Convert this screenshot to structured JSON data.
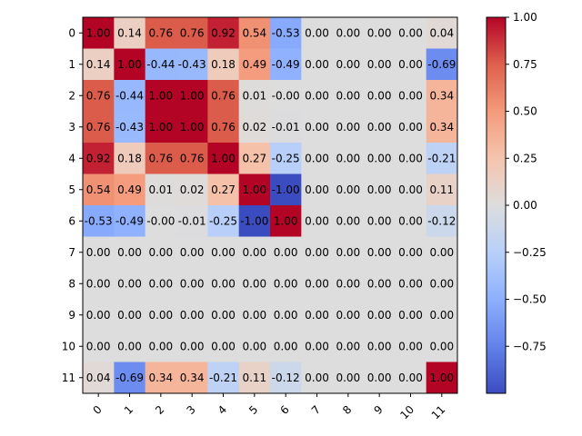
{
  "chart_data": {
    "type": "heatmap",
    "title": "",
    "xlabel": "",
    "ylabel": "",
    "x_categories": [
      "0",
      "1",
      "2",
      "3",
      "4",
      "5",
      "6",
      "7",
      "8",
      "9",
      "10",
      "11"
    ],
    "y_categories": [
      "0",
      "1",
      "2",
      "3",
      "4",
      "5",
      "6",
      "7",
      "8",
      "9",
      "10",
      "11"
    ],
    "values": [
      [
        1.0,
        0.14,
        0.76,
        0.76,
        0.92,
        0.54,
        -0.53,
        0.0,
        0.0,
        0.0,
        0.0,
        0.04
      ],
      [
        0.14,
        1.0,
        -0.44,
        -0.43,
        0.18,
        0.49,
        -0.49,
        0.0,
        0.0,
        0.0,
        0.0,
        -0.69
      ],
      [
        0.76,
        -0.44,
        1.0,
        1.0,
        0.76,
        0.01,
        -0.0,
        0.0,
        0.0,
        0.0,
        0.0,
        0.34
      ],
      [
        0.76,
        -0.43,
        1.0,
        1.0,
        0.76,
        0.02,
        -0.01,
        0.0,
        0.0,
        0.0,
        0.0,
        0.34
      ],
      [
        0.92,
        0.18,
        0.76,
        0.76,
        1.0,
        0.27,
        -0.25,
        0.0,
        0.0,
        0.0,
        0.0,
        -0.21
      ],
      [
        0.54,
        0.49,
        0.01,
        0.02,
        0.27,
        1.0,
        -1.0,
        0.0,
        0.0,
        0.0,
        0.0,
        0.11
      ],
      [
        -0.53,
        -0.49,
        -0.0,
        -0.01,
        -0.25,
        -1.0,
        1.0,
        0.0,
        0.0,
        0.0,
        0.0,
        -0.12
      ],
      [
        0.0,
        0.0,
        0.0,
        0.0,
        0.0,
        0.0,
        0.0,
        0.0,
        0.0,
        0.0,
        0.0,
        0.0
      ],
      [
        0.0,
        0.0,
        0.0,
        0.0,
        0.0,
        0.0,
        0.0,
        0.0,
        0.0,
        0.0,
        0.0,
        0.0
      ],
      [
        0.0,
        0.0,
        0.0,
        0.0,
        0.0,
        0.0,
        0.0,
        0.0,
        0.0,
        0.0,
        0.0,
        0.0
      ],
      [
        0.0,
        0.0,
        0.0,
        0.0,
        0.0,
        0.0,
        0.0,
        0.0,
        0.0,
        0.0,
        0.0,
        0.0
      ],
      [
        0.04,
        -0.69,
        0.34,
        0.34,
        -0.21,
        0.11,
        -0.12,
        0.0,
        0.0,
        0.0,
        0.0,
        1.0
      ]
    ],
    "cell_labels": [
      [
        "1.00",
        "0.14",
        "0.76",
        "0.76",
        "0.92",
        "0.54",
        "-0.53",
        "0.00",
        "0.00",
        "0.00",
        "0.00",
        "0.04"
      ],
      [
        "0.14",
        "1.00",
        "-0.44",
        "-0.43",
        "0.18",
        "0.49",
        "-0.49",
        "0.00",
        "0.00",
        "0.00",
        "0.00",
        "-0.69"
      ],
      [
        "0.76",
        "-0.44",
        "1.00",
        "1.00",
        "0.76",
        "0.01",
        "-0.00",
        "0.00",
        "0.00",
        "0.00",
        "0.00",
        "0.34"
      ],
      [
        "0.76",
        "-0.43",
        "1.00",
        "1.00",
        "0.76",
        "0.02",
        "-0.01",
        "0.00",
        "0.00",
        "0.00",
        "0.00",
        "0.34"
      ],
      [
        "0.92",
        "0.18",
        "0.76",
        "0.76",
        "1.00",
        "0.27",
        "-0.25",
        "0.00",
        "0.00",
        "0.00",
        "0.00",
        "-0.21"
      ],
      [
        "0.54",
        "0.49",
        "0.01",
        "0.02",
        "0.27",
        "1.00",
        "-1.00",
        "0.00",
        "0.00",
        "0.00",
        "0.00",
        "0.11"
      ],
      [
        "-0.53",
        "-0.49",
        "-0.00",
        "-0.01",
        "-0.25",
        "-1.00",
        "1.00",
        "0.00",
        "0.00",
        "0.00",
        "0.00",
        "-0.12"
      ],
      [
        "0.00",
        "0.00",
        "0.00",
        "0.00",
        "0.00",
        "0.00",
        "0.00",
        "0.00",
        "0.00",
        "0.00",
        "0.00",
        "0.00"
      ],
      [
        "0.00",
        "0.00",
        "0.00",
        "0.00",
        "0.00",
        "0.00",
        "0.00",
        "0.00",
        "0.00",
        "0.00",
        "0.00",
        "0.00"
      ],
      [
        "0.00",
        "0.00",
        "0.00",
        "0.00",
        "0.00",
        "0.00",
        "0.00",
        "0.00",
        "0.00",
        "0.00",
        "0.00",
        "0.00"
      ],
      [
        "0.00",
        "0.00",
        "0.00",
        "0.00",
        "0.00",
        "0.00",
        "0.00",
        "0.00",
        "0.00",
        "0.00",
        "0.00",
        "0.00"
      ],
      [
        "0.04",
        "-0.69",
        "0.34",
        "0.34",
        "-0.21",
        "0.11",
        "-0.12",
        "0.00",
        "0.00",
        "0.00",
        "0.00",
        "1.00"
      ]
    ],
    "colormap": "coolwarm",
    "value_range": [
      -1.0,
      1.0
    ],
    "colorbar": {
      "ticks": [
        1.0,
        0.75,
        0.5,
        0.25,
        0.0,
        -0.25,
        -0.5,
        -0.75
      ],
      "tick_labels": [
        "1.00",
        "0.75",
        "0.50",
        "0.25",
        "0.00",
        "−0.25",
        "−0.50",
        "−0.75"
      ],
      "placement": "right"
    },
    "x_tick_rotation_deg": 45,
    "grid": false
  }
}
